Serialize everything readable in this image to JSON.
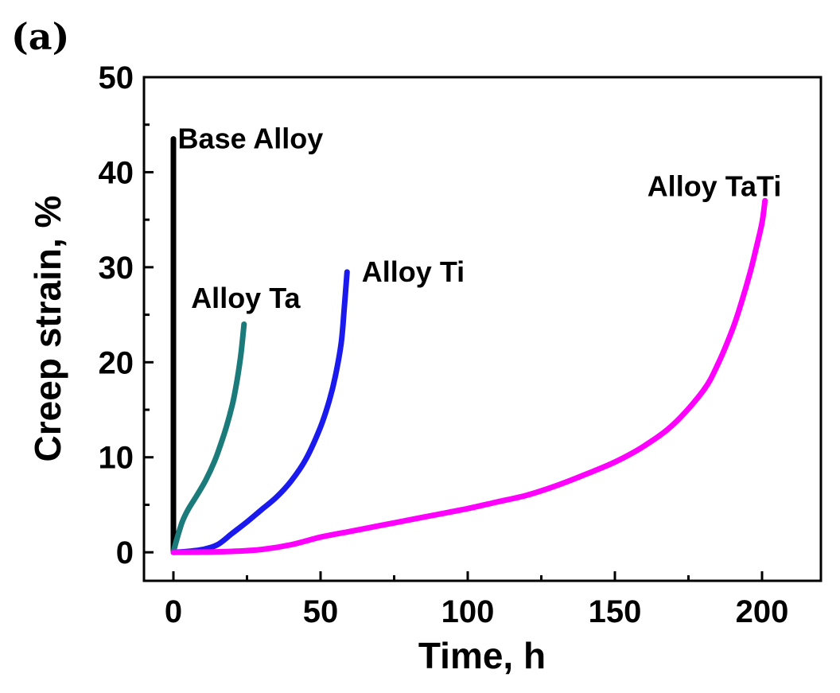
{
  "panel_label": "(a)",
  "chart_data": {
    "type": "line",
    "title": "",
    "xlabel": "Time, h",
    "ylabel": "Creep strain, %",
    "xlim": [
      -10,
      220
    ],
    "ylim": [
      -3,
      50
    ],
    "xticks": [
      0,
      50,
      100,
      150,
      200
    ],
    "yticks": [
      0,
      10,
      20,
      30,
      40,
      50
    ],
    "grid": false,
    "legend": "none",
    "series": [
      {
        "name": "Base Alloy",
        "color": "#000000",
        "x": [
          0,
          0
        ],
        "y": [
          0,
          43.5
        ]
      },
      {
        "name": "Alloy Ta",
        "color": "#1b7b7b",
        "x": [
          0,
          1,
          3,
          5,
          8,
          11,
          14,
          16,
          18,
          20,
          21,
          22,
          23,
          24
        ],
        "y": [
          0,
          1.2,
          3.2,
          4.5,
          6.0,
          7.6,
          9.6,
          11.3,
          13.2,
          15.5,
          17.0,
          18.8,
          21.0,
          24.0
        ]
      },
      {
        "name": "Alloy Ti",
        "color": "#1a1aee",
        "x": [
          0,
          5,
          10,
          15,
          20,
          25,
          30,
          35,
          40,
          45,
          50,
          53,
          55,
          57,
          58,
          59
        ],
        "y": [
          0,
          0.1,
          0.3,
          0.8,
          2.0,
          3.2,
          4.5,
          5.8,
          7.5,
          9.8,
          13.2,
          16.0,
          18.5,
          22.0,
          25.5,
          29.5
        ]
      },
      {
        "name": "Alloy TaTi",
        "color": "#ff00ff",
        "x": [
          0,
          10,
          20,
          30,
          40,
          50,
          60,
          70,
          80,
          90,
          100,
          110,
          120,
          130,
          140,
          150,
          160,
          170,
          180,
          185,
          190,
          193,
          196,
          198,
          200,
          201
        ],
        "y": [
          0,
          0.02,
          0.1,
          0.3,
          0.8,
          1.6,
          2.2,
          2.8,
          3.4,
          4.0,
          4.6,
          5.3,
          6.0,
          7.0,
          8.2,
          9.5,
          11.2,
          13.5,
          17.0,
          19.8,
          23.5,
          26.3,
          29.5,
          32.0,
          34.7,
          37.0
        ]
      }
    ],
    "annotations": [
      {
        "text": "Base Alloy",
        "series": "Base Alloy",
        "x": 1.5,
        "y": 42.5
      },
      {
        "text": "Alloy Ta",
        "series": "Alloy Ta",
        "x": 6,
        "y": 25.7
      },
      {
        "text": "Alloy Ti",
        "series": "Alloy Ti",
        "x": 64,
        "y": 28.5
      },
      {
        "text": "Alloy TaTi",
        "series": "Alloy TaTi",
        "x": 161,
        "y": 37.5
      }
    ]
  }
}
